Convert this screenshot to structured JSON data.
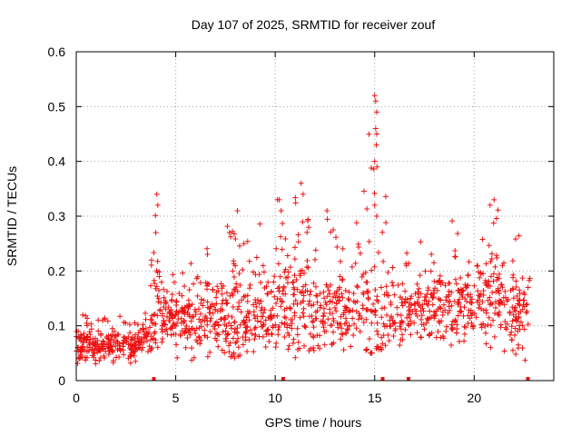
{
  "chart_data": {
    "type": "scatter",
    "title": "Day 107 of 2025, SRMTID for receiver zouf",
    "xlabel": "GPS time / hours",
    "ylabel": "SRMTID / TECUs",
    "xlim": [
      0,
      24
    ],
    "ylim": [
      0,
      0.6
    ],
    "xticks": [
      0,
      5,
      10,
      15,
      20
    ],
    "xtick_labels": [
      "0",
      "5",
      "10",
      "15",
      "20"
    ],
    "yticks": [
      0,
      0.1,
      0.2,
      0.3,
      0.4,
      0.5,
      0.6
    ],
    "ytick_labels": [
      "0",
      "0.1",
      "0.2",
      "0.3",
      "0.4",
      "0.5",
      "0.6"
    ],
    "grid": true,
    "marker": "+",
    "color": "#ee1111",
    "series": [
      {
        "name": "SRMTID",
        "envelope_hours": [
          0,
          1,
          2,
          3,
          3.5,
          4,
          4.5,
          5,
          6,
          7,
          8,
          9,
          10,
          10.5,
          11,
          12,
          13,
          14,
          15,
          16,
          17,
          18,
          19,
          20,
          21,
          22,
          22.8
        ],
        "envelope_median": [
          0.07,
          0.06,
          0.07,
          0.06,
          0.08,
          0.11,
          0.12,
          0.12,
          0.11,
          0.12,
          0.11,
          0.12,
          0.13,
          0.15,
          0.14,
          0.13,
          0.13,
          0.13,
          0.13,
          0.12,
          0.13,
          0.14,
          0.13,
          0.15,
          0.17,
          0.12,
          0.12
        ],
        "envelope_min": [
          0.02,
          0.02,
          0.03,
          0.03,
          0.05,
          0.06,
          0.05,
          0.04,
          0.03,
          0.05,
          0.04,
          0.05,
          0.05,
          0.06,
          0.03,
          0.05,
          0.06,
          0.05,
          0.05,
          0.06,
          0.07,
          0.08,
          0.06,
          0.06,
          0.05,
          0.03,
          0.04
        ],
        "envelope_max": [
          0.13,
          0.11,
          0.12,
          0.11,
          0.15,
          0.34,
          0.2,
          0.2,
          0.22,
          0.26,
          0.31,
          0.27,
          0.34,
          0.3,
          0.36,
          0.31,
          0.3,
          0.27,
          0.53,
          0.21,
          0.26,
          0.29,
          0.3,
          0.27,
          0.33,
          0.27,
          0.29
        ],
        "spikes": [
          {
            "x": 4.05,
            "y": 0.34
          },
          {
            "x": 4.1,
            "y": 0.32
          },
          {
            "x": 4.0,
            "y": 0.27
          },
          {
            "x": 8.1,
            "y": 0.31
          },
          {
            "x": 10.2,
            "y": 0.33
          },
          {
            "x": 10.3,
            "y": 0.31
          },
          {
            "x": 11.3,
            "y": 0.36
          },
          {
            "x": 11.4,
            "y": 0.34
          },
          {
            "x": 12.6,
            "y": 0.31
          },
          {
            "x": 15.0,
            "y": 0.52
          },
          {
            "x": 15.05,
            "y": 0.51
          },
          {
            "x": 15.1,
            "y": 0.49
          },
          {
            "x": 15.05,
            "y": 0.46
          },
          {
            "x": 15.1,
            "y": 0.45
          },
          {
            "x": 15.08,
            "y": 0.43
          },
          {
            "x": 15.0,
            "y": 0.4
          },
          {
            "x": 15.12,
            "y": 0.39
          },
          {
            "x": 15.0,
            "y": 0.32
          },
          {
            "x": 15.1,
            "y": 0.3
          },
          {
            "x": 20.8,
            "y": 0.32
          },
          {
            "x": 21.0,
            "y": 0.33
          }
        ]
      }
    ],
    "zero_markers_hours": [
      3.9,
      10.4,
      15.4,
      16.7,
      22.7
    ]
  }
}
